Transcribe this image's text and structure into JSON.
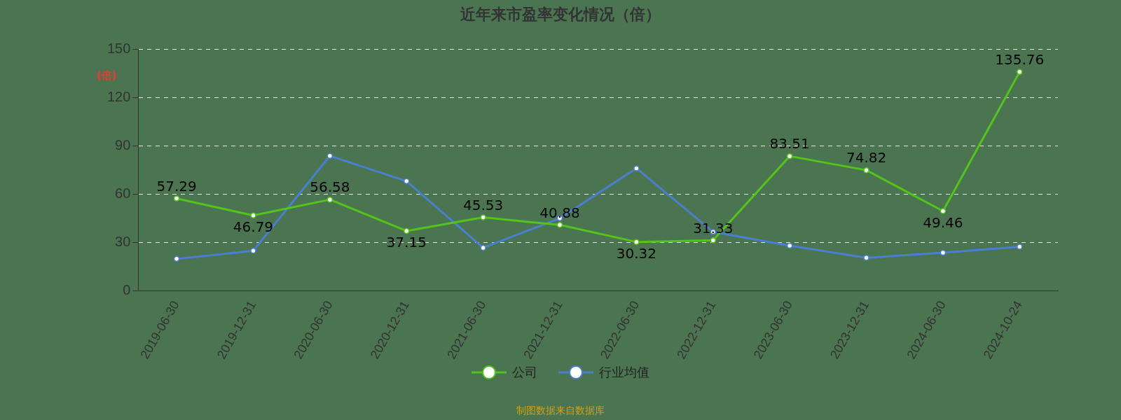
{
  "chart_data": {
    "type": "line",
    "title": "近年来市盈率变化情况（倍）",
    "ylabel": "(倍)",
    "categories": [
      "2019-06-30",
      "2019-12-31",
      "2020-06-30",
      "2020-12-31",
      "2021-06-30",
      "2021-12-31",
      "2022-06-30",
      "2022-12-31",
      "2023-06-30",
      "2023-12-31",
      "2024-06-30",
      "2024-10-24"
    ],
    "series": [
      {
        "name": "公司",
        "color": "#52c41a",
        "values": [
          57.29,
          46.79,
          56.58,
          37.15,
          45.53,
          40.88,
          30.32,
          31.33,
          83.51,
          74.82,
          49.46,
          135.76
        ],
        "value_labels": [
          "57.29",
          "46.79",
          "56.58",
          "37.15",
          "45.53",
          "40.88",
          "30.32",
          "31.33",
          "83.51",
          "74.82",
          "49.46",
          "135.76"
        ]
      },
      {
        "name": "行业均值",
        "color": "#4a7fd0",
        "values": [
          19.8,
          24.8,
          83.7,
          68,
          26.7,
          45,
          76,
          36.6,
          28,
          20.5,
          23.6,
          27.3
        ]
      }
    ],
    "ylim": [
      0,
      150
    ],
    "yticks": [
      0,
      30,
      60,
      90,
      120,
      150
    ],
    "grid": "y",
    "legend": "bottom",
    "marker": "circle",
    "line_style": "solid",
    "annotations": [
      "制图数据来自数据库"
    ]
  }
}
